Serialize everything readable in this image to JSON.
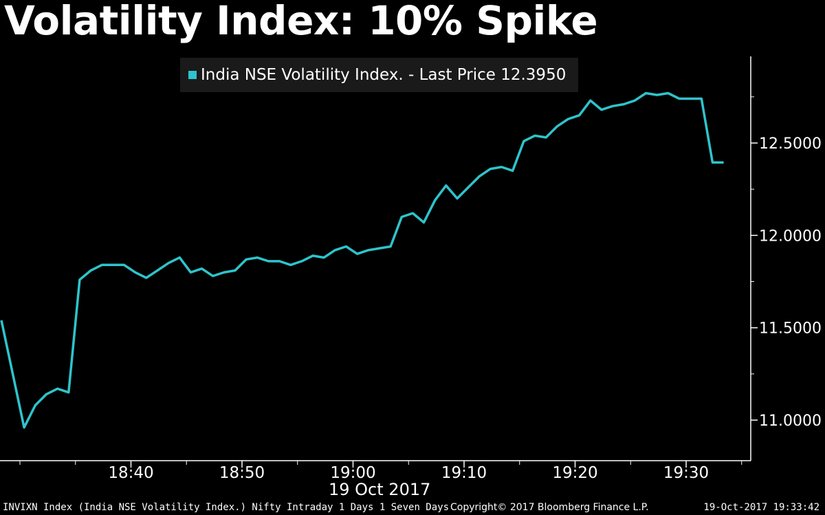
{
  "title": "Volatility Index: 10% Spike",
  "colors": {
    "background": "#000000",
    "line": "#2ec4cc",
    "axis": "#ffffff",
    "legend_bg": "#1a1a1a",
    "text": "#ffffff"
  },
  "legend": {
    "label": "India NSE Volatility Index. - Last Price 12.3950"
  },
  "footer": {
    "left": "INVIXN Index (India NSE Volatility Index.) Nifty Intraday 1 Days 1 Seven Days",
    "center": "Copyright© 2017 Bloomberg Finance L.P.",
    "right": "19-Oct-2017 19:33:42"
  },
  "x_axis_date": "19 Oct 2017",
  "chart_data": {
    "type": "line",
    "title": "Volatility Index: 10% Spike",
    "xlabel": "19 Oct 2017",
    "ylabel": "",
    "x_unit": "minutes since 18:30",
    "xlim": [
      0,
      65
    ],
    "ylim": [
      10.8,
      12.95
    ],
    "y_ticks": [
      11.0,
      11.5,
      12.0,
      12.5
    ],
    "y_tick_labels": [
      "11.0000",
      "11.5000",
      "12.0000",
      "12.5000"
    ],
    "x_ticks": [
      10,
      20,
      30,
      40,
      50,
      60
    ],
    "x_tick_labels": [
      "18:40",
      "18:50",
      "19:00",
      "19:10",
      "19:20",
      "19:30"
    ],
    "minor_x_ticks": [
      0,
      5,
      15,
      25,
      35,
      45,
      55,
      65
    ],
    "series": [
      {
        "name": "India NSE Volatility Index. - Last Price 12.3950",
        "x": [
          0,
          1,
          2,
          3,
          4,
          5,
          6,
          7,
          8,
          9,
          10,
          11,
          12,
          13,
          14,
          15,
          16,
          17,
          18,
          19,
          20,
          21,
          22,
          23,
          24,
          25,
          26,
          27,
          28,
          29,
          30,
          31,
          32,
          33,
          34,
          35,
          36,
          37,
          38,
          39,
          40,
          41,
          42,
          43,
          44,
          45,
          46,
          47,
          48,
          49,
          50,
          51,
          52,
          53,
          54,
          55,
          56,
          57,
          58,
          59,
          60,
          61,
          62
        ],
        "values": [
          11.54,
          10.96,
          11.08,
          11.14,
          11.17,
          11.15,
          11.76,
          11.81,
          11.84,
          11.84,
          11.84,
          11.8,
          11.77,
          11.81,
          11.85,
          11.88,
          11.8,
          11.82,
          11.78,
          11.8,
          11.81,
          11.87,
          11.88,
          11.86,
          11.86,
          11.84,
          11.86,
          11.89,
          11.88,
          11.92,
          11.94,
          11.9,
          11.92,
          11.93,
          11.94,
          12.1,
          12.12,
          12.07,
          12.19,
          12.27,
          12.2,
          12.26,
          12.32,
          12.36,
          12.37,
          12.35,
          12.51,
          12.54,
          12.53,
          12.59,
          12.63,
          12.65,
          12.73,
          12.68,
          12.7,
          12.71,
          12.73,
          12.77,
          12.76,
          12.77,
          12.74,
          12.74,
          12.74
        ]
      }
    ],
    "tail": {
      "x": [
        62,
        63,
        64
      ],
      "values": [
        12.74,
        12.395,
        12.395
      ]
    }
  }
}
